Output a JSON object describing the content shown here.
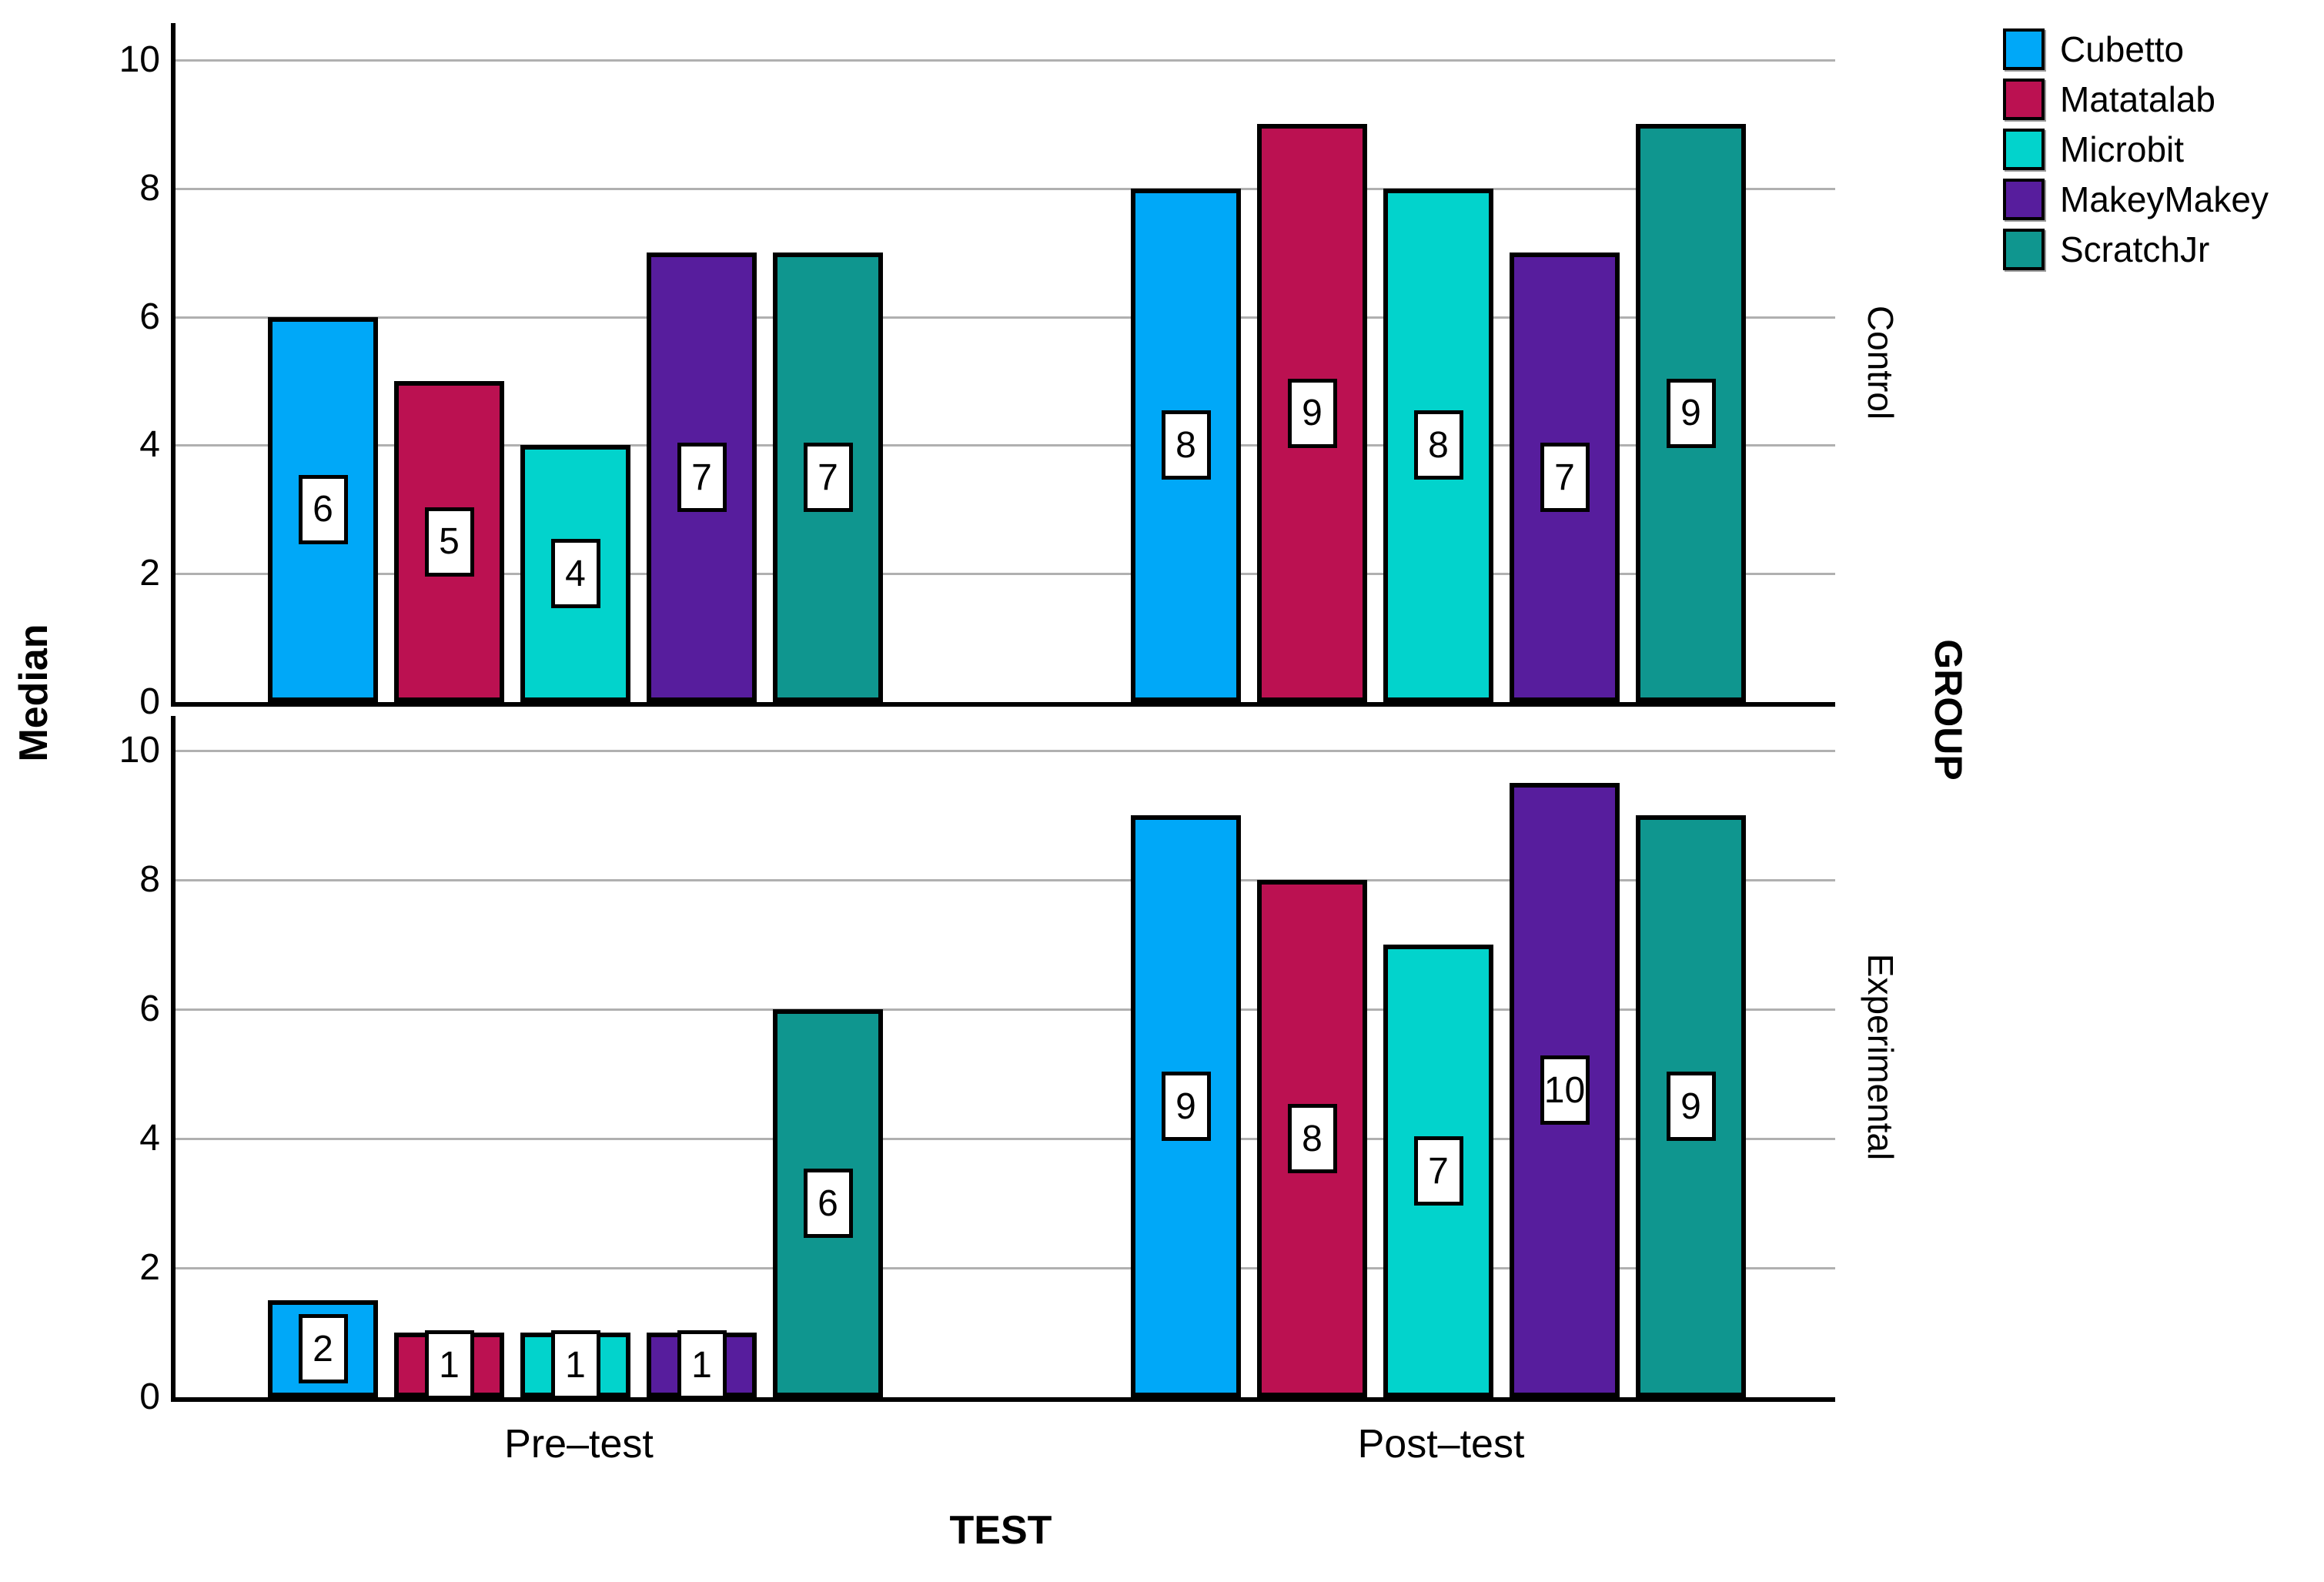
{
  "chart_data": {
    "type": "bar",
    "title": "",
    "ylabel": "Median",
    "xlabel": "TEST",
    "group_axis_label": "GROUP",
    "ylim": [
      0,
      10
    ],
    "yticks": [
      0,
      2,
      4,
      6,
      8,
      10
    ],
    "grid": "horizontal",
    "legend_position": "top-right",
    "categories": [
      "Pre–test",
      "Post–test"
    ],
    "series": [
      "Cubetto",
      "Matatalab",
      "Microbit",
      "MakeyMakey",
      "ScratchJr"
    ],
    "series_colors": [
      "#00A8F8",
      "#BB1151",
      "#02D3CC",
      "#571D9D",
      "#0F968F"
    ],
    "panels": [
      {
        "label": "Control",
        "values": [
          [
            6,
            5,
            4,
            7,
            7
          ],
          [
            8,
            9,
            8,
            7,
            9
          ]
        ],
        "bar_heights": [
          [
            6,
            5,
            4,
            7,
            7
          ],
          [
            8,
            9,
            8,
            7,
            9
          ]
        ]
      },
      {
        "label": "Experimental",
        "values": [
          [
            2,
            1,
            1,
            1,
            6
          ],
          [
            9,
            8,
            7,
            10,
            9
          ]
        ],
        "bar_heights": [
          [
            1.5,
            1,
            1,
            1,
            6
          ],
          [
            9,
            8,
            7,
            9.5,
            9
          ]
        ]
      }
    ]
  }
}
